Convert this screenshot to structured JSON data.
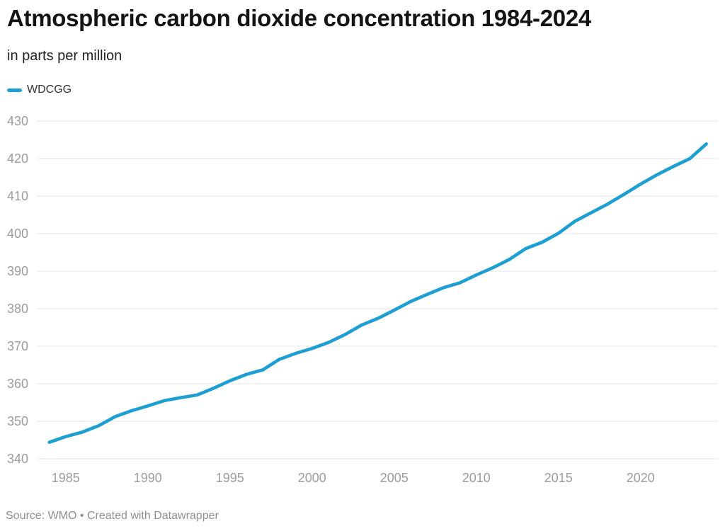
{
  "header": {
    "title": "Atmospheric carbon dioxide concentration 1984-2024",
    "subtitle": "in parts per million"
  },
  "footer": {
    "source": "Source: WMO • Created with Datawrapper"
  },
  "colors": {
    "line": "#1D9FD3",
    "grid": "#E4E4E4",
    "tick_label": "#9C9C9C",
    "title_text": "#141414",
    "source_text": "#8F8F8F"
  },
  "chart_data": {
    "type": "line",
    "title": "Atmospheric carbon dioxide concentration 1984-2024",
    "subtitle": "in parts per million",
    "unit": "parts per million (ppm)",
    "xlabel": "",
    "ylabel": "",
    "xlim": [
      1984,
      2024
    ],
    "ylim": [
      340,
      430
    ],
    "x_ticks": [
      1985,
      1990,
      1995,
      2000,
      2005,
      2010,
      2015,
      2020
    ],
    "y_ticks": [
      340,
      350,
      360,
      370,
      380,
      390,
      400,
      410,
      420,
      430
    ],
    "grid": "horizontal",
    "legend_position": "top-left",
    "series": [
      {
        "name": "WDCGG",
        "color": "#1D9FD3",
        "x": [
          1984,
          1985,
          1986,
          1987,
          1988,
          1989,
          1990,
          1991,
          1992,
          1993,
          1994,
          1995,
          1996,
          1997,
          1998,
          1999,
          2000,
          2001,
          2002,
          2003,
          2004,
          2005,
          2006,
          2007,
          2008,
          2009,
          2010,
          2011,
          2012,
          2013,
          2014,
          2015,
          2016,
          2017,
          2018,
          2019,
          2020,
          2021,
          2022,
          2023,
          2024
        ],
        "values": [
          344.4,
          345.9,
          347.1,
          348.8,
          351.2,
          352.8,
          354.1,
          355.5,
          356.3,
          357.0,
          358.8,
          360.8,
          362.5,
          363.7,
          366.5,
          368.1,
          369.4,
          371.0,
          373.1,
          375.6,
          377.4,
          379.6,
          381.9,
          383.8,
          385.6,
          386.9,
          389.0,
          390.9,
          393.1,
          396.0,
          397.7,
          400.1,
          403.3,
          405.6,
          407.9,
          410.5,
          413.2,
          415.7,
          417.9,
          420.0,
          423.9
        ]
      }
    ]
  }
}
